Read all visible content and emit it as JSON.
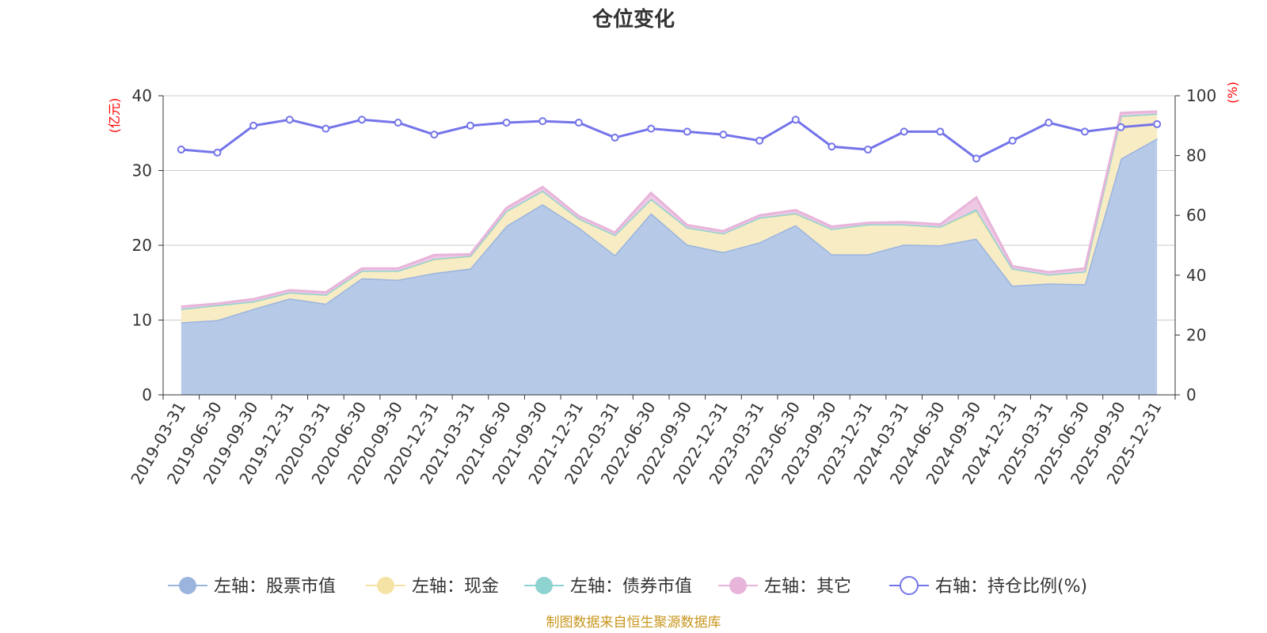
{
  "chart_data": {
    "type": "area",
    "title": "仓位变化",
    "left_axis_unit": "(亿元)",
    "right_axis_unit": "(%)",
    "left_ylim": [
      0,
      40
    ],
    "right_ylim": [
      0,
      100
    ],
    "left_ticks": [
      0,
      10,
      20,
      30,
      40
    ],
    "right_ticks": [
      0,
      20,
      40,
      60,
      80,
      100
    ],
    "grid": true,
    "legend_position": "bottom",
    "categories": [
      "2019-03-31",
      "2019-06-30",
      "2019-09-30",
      "2019-12-31",
      "2020-03-31",
      "2020-06-30",
      "2020-09-30",
      "2020-12-31",
      "2021-03-31",
      "2021-06-30",
      "2021-09-30",
      "2021-12-31",
      "2022-03-31",
      "2022-06-30",
      "2022-09-30",
      "2022-12-31",
      "2023-03-31",
      "2023-06-30",
      "2023-09-30",
      "2023-12-31",
      "2024-03-31",
      "2024-06-30",
      "2024-09-30",
      "2024-12-31",
      "2025-03-31",
      "2025-06-30",
      "2025-09-30",
      "2025-12-31"
    ],
    "series": [
      {
        "name": "左轴：股票市值",
        "axis": "left",
        "stacked": true,
        "color": "#9ab4de",
        "fill": "#b6cae8",
        "values": [
          9.7,
          10.0,
          11.5,
          12.9,
          12.2,
          15.6,
          15.4,
          16.3,
          16.9,
          22.6,
          25.5,
          22.4,
          18.7,
          24.3,
          20.1,
          19.1,
          20.4,
          22.7,
          18.8,
          18.8,
          20.1,
          20.0,
          20.9,
          14.6,
          14.9,
          14.8,
          31.6,
          34.3
        ]
      },
      {
        "name": "左轴：现金",
        "axis": "left",
        "stacked": true,
        "color": "#f5e3a6",
        "fill": "#f8ecc4",
        "values": [
          1.8,
          2.0,
          1.0,
          0.8,
          1.2,
          1.0,
          1.2,
          1.8,
          1.6,
          2.0,
          1.8,
          1.2,
          2.7,
          1.9,
          2.3,
          2.5,
          3.3,
          1.5,
          3.4,
          4.0,
          2.7,
          2.5,
          3.6,
          2.3,
          1.2,
          1.7,
          5.7,
          3.3
        ]
      },
      {
        "name": "左轴：债券市值",
        "axis": "left",
        "stacked": true,
        "color": "#8fd3d0",
        "fill": "#a8dcd9",
        "values": [
          0,
          0,
          0,
          0,
          0,
          0,
          0,
          0.1,
          0.1,
          0,
          0,
          0,
          0,
          0,
          0,
          0,
          0,
          0.1,
          0,
          0,
          0,
          0,
          0.3,
          0,
          0,
          0,
          0,
          0
        ]
      },
      {
        "name": "左轴：其它",
        "axis": "left",
        "stacked": true,
        "color": "#e8b5da",
        "fill": "#efc9e4",
        "values": [
          0.3,
          0.2,
          0.3,
          0.3,
          0.3,
          0.3,
          0.3,
          0.5,
          0.2,
          0.4,
          0.5,
          0.3,
          0.3,
          0.8,
          0.3,
          0.3,
          0.3,
          0.4,
          0.3,
          0.2,
          0.3,
          0.3,
          1.6,
          0.3,
          0.3,
          0.4,
          0.4,
          0.3
        ]
      },
      {
        "name": "右轴：持仓比例(%)",
        "axis": "right",
        "type": "line",
        "color": "#7474ea",
        "values": [
          82,
          81,
          90,
          92,
          89,
          92,
          91,
          87,
          90,
          91,
          91.5,
          91,
          86,
          89,
          88,
          87,
          85,
          92,
          83,
          82,
          88,
          88,
          79,
          85,
          91,
          88,
          89.5,
          90.5
        ]
      }
    ]
  },
  "source_note": "制图数据来自恒生聚源数据库"
}
